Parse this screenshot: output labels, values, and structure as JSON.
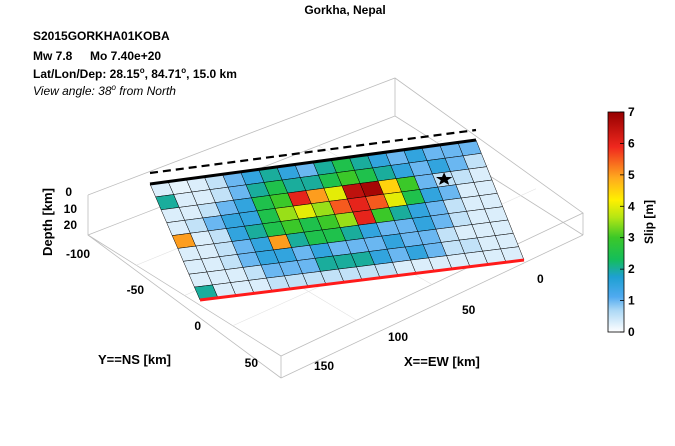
{
  "chart_data": {
    "type": "heatmap",
    "title": "Gorkha, Nepal",
    "info": {
      "event_id": "S2015GORKHA01KOBA",
      "magnitude": "Mw 7.8",
      "moment": "Mo 7.40e+20",
      "location_prefix": "Lat/Lon/Dep: 28.15",
      "location_mid": ", 84.71",
      "location_suffix": ", 15.0 km",
      "degree_symbol": "o",
      "view_prefix": "View angle:  38",
      "view_suffix": " from North"
    },
    "axes": {
      "x": {
        "label": "X==EW [km]",
        "ticks": [
          "0",
          "50",
          "100",
          "150"
        ]
      },
      "y": {
        "label": "Y==NS [km]",
        "ticks": [
          "-100",
          "-50",
          "0",
          "50"
        ]
      },
      "z": {
        "label": "Depth [km]",
        "ticks": [
          "0",
          "10",
          "20"
        ]
      }
    },
    "colorbar": {
      "label": "Slip [m]",
      "ticks": [
        "0",
        "1",
        "2",
        "3",
        "4",
        "5",
        "6",
        "7"
      ],
      "range": [
        0,
        7
      ]
    },
    "grid": {
      "rows": 9,
      "cols": 18
    },
    "slip": [
      [
        0.3,
        0.2,
        0.3,
        0.5,
        1.0,
        1.5,
        2.0,
        1.5,
        1.0,
        2.0,
        2.5,
        2.0,
        1.5,
        1.0,
        1.5,
        1.0,
        1.0,
        1.0
      ],
      [
        2.0,
        0.3,
        0.3,
        0.5,
        1.0,
        2.0,
        2.5,
        2.0,
        2.0,
        2.5,
        3.0,
        2.5,
        2.0,
        1.5,
        1.0,
        1.5,
        1.0,
        0.5
      ],
      [
        0.3,
        0.3,
        0.5,
        1.0,
        1.5,
        2.5,
        3.0,
        6.0,
        5.0,
        4.0,
        6.5,
        6.8,
        4.5,
        3.0,
        1.0,
        0.5,
        0.5,
        0.3
      ],
      [
        0.3,
        0.5,
        1.0,
        1.5,
        1.5,
        2.5,
        3.5,
        4.0,
        3.5,
        5.5,
        6.0,
        5.5,
        4.0,
        2.5,
        1.5,
        1.0,
        0.3,
        0.3
      ],
      [
        5.0,
        0.3,
        0.5,
        1.5,
        2.0,
        2.5,
        3.0,
        2.5,
        3.0,
        3.5,
        6.0,
        3.0,
        2.0,
        1.5,
        1.0,
        0.5,
        0.3,
        0.3
      ],
      [
        0.3,
        0.3,
        0.5,
        1.0,
        1.5,
        5.0,
        2.0,
        2.5,
        2.5,
        2.0,
        1.5,
        1.0,
        1.0,
        1.5,
        1.0,
        0.5,
        0.3,
        0.3
      ],
      [
        0.3,
        0.3,
        0.5,
        1.0,
        1.5,
        1.5,
        1.0,
        1.5,
        1.0,
        1.0,
        1.0,
        1.5,
        1.0,
        1.0,
        0.5,
        0.3,
        0.3,
        0.3
      ],
      [
        0.3,
        0.3,
        0.3,
        0.5,
        1.0,
        1.0,
        1.0,
        2.0,
        2.0,
        2.0,
        1.5,
        1.0,
        1.5,
        1.0,
        0.5,
        0.5,
        0.3,
        0.3
      ],
      [
        2.0,
        0.3,
        0.3,
        0.3,
        0.5,
        0.5,
        0.5,
        0.5,
        0.5,
        0.5,
        0.5,
        0.3,
        0.3,
        0.3,
        0.3,
        0.3,
        0.3,
        0.3
      ]
    ],
    "hypocenter": {
      "row": 2,
      "col": 15
    },
    "legend": "right"
  }
}
